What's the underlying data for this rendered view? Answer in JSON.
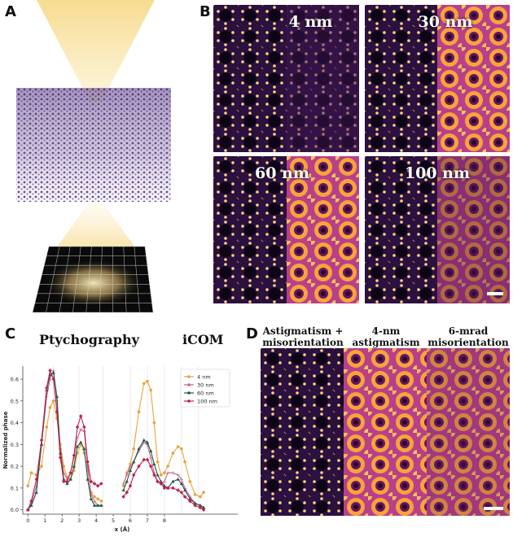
{
  "panels": {
    "a": "A",
    "b": "B",
    "c": "C",
    "d": "D"
  },
  "panel_b": {
    "tiles": [
      "4 nm",
      "30 nm",
      "60 nm",
      "100 nm"
    ]
  },
  "panel_c": {
    "title_left": "Ptychography",
    "title_right": "iCOM"
  },
  "panel_d": {
    "titles": [
      "Astigmatism +\nmisorientation",
      "4-nm\nastigmatism",
      "6-mrad\nmisorientation"
    ]
  },
  "colors": {
    "4 nm": "#e8a33d",
    "30 nm": "#c8648c",
    "60 nm": "#1e5a46",
    "100 nm": "#c21e4b"
  },
  "chart_data": {
    "type": "line",
    "xlabel": "x (Å)",
    "ylabel": "Normalized phase",
    "xlim": [
      -0.3,
      12.3
    ],
    "ylim": [
      -0.02,
      0.66
    ],
    "xticks": [
      0,
      1,
      2,
      3,
      4,
      5,
      6,
      7,
      8
    ],
    "yticks": [
      0.0,
      0.1,
      0.2,
      0.3,
      0.4,
      0.5,
      0.6
    ],
    "legend": "top-right",
    "series": [
      {
        "name": "4 nm",
        "ptycho": [
          [
            0,
            0.11
          ],
          [
            0.2,
            0.17
          ],
          [
            0.5,
            0.16
          ],
          [
            0.8,
            0.2
          ],
          [
            1.1,
            0.38
          ],
          [
            1.3,
            0.47
          ],
          [
            1.5,
            0.5
          ],
          [
            1.7,
            0.42
          ],
          [
            1.9,
            0.3
          ],
          [
            2.1,
            0.2
          ],
          [
            2.3,
            0.15
          ],
          [
            2.5,
            0.14
          ],
          [
            2.7,
            0.18
          ],
          [
            2.9,
            0.26
          ],
          [
            3.1,
            0.3
          ],
          [
            3.3,
            0.26
          ],
          [
            3.5,
            0.18
          ],
          [
            3.7,
            0.08
          ],
          [
            3.9,
            0.06
          ],
          [
            4.1,
            0.05
          ],
          [
            4.3,
            0.04
          ]
        ],
        "icom": [
          [
            5.6,
            0.11
          ],
          [
            5.8,
            0.17
          ],
          [
            6.0,
            0.21
          ],
          [
            6.2,
            0.28
          ],
          [
            6.5,
            0.45
          ],
          [
            6.8,
            0.58
          ],
          [
            7.0,
            0.59
          ],
          [
            7.2,
            0.55
          ],
          [
            7.4,
            0.4
          ],
          [
            7.6,
            0.22
          ],
          [
            7.8,
            0.16
          ],
          [
            8.0,
            0.17
          ],
          [
            8.2,
            0.2
          ],
          [
            8.5,
            0.26
          ],
          [
            8.8,
            0.29
          ],
          [
            9.0,
            0.28
          ],
          [
            9.2,
            0.22
          ],
          [
            9.5,
            0.13
          ],
          [
            9.8,
            0.07
          ],
          [
            10.1,
            0.06
          ],
          [
            10.3,
            0.08
          ]
        ]
      },
      {
        "name": "30 nm",
        "ptycho": [
          [
            0,
            0.0
          ],
          [
            0.2,
            0.03
          ],
          [
            0.5,
            0.11
          ],
          [
            0.8,
            0.3
          ],
          [
            1.1,
            0.52
          ],
          [
            1.3,
            0.6
          ],
          [
            1.5,
            0.64
          ],
          [
            1.7,
            0.5
          ],
          [
            1.9,
            0.28
          ],
          [
            2.1,
            0.17
          ],
          [
            2.3,
            0.14
          ],
          [
            2.5,
            0.17
          ],
          [
            2.7,
            0.24
          ],
          [
            2.9,
            0.33
          ],
          [
            3.1,
            0.37
          ],
          [
            3.3,
            0.36
          ],
          [
            3.5,
            0.2
          ],
          [
            3.7,
            0.07
          ],
          [
            3.9,
            0.04
          ],
          [
            4.1,
            0.02
          ],
          [
            4.3,
            0.02
          ]
        ],
        "icom": [
          [
            5.6,
            0.12
          ],
          [
            5.8,
            0.16
          ],
          [
            6.0,
            0.2
          ],
          [
            6.2,
            0.22
          ],
          [
            6.5,
            0.27
          ],
          [
            6.8,
            0.31
          ],
          [
            7.0,
            0.3
          ],
          [
            7.2,
            0.24
          ],
          [
            7.4,
            0.17
          ],
          [
            7.6,
            0.13
          ],
          [
            7.8,
            0.12
          ],
          [
            8.0,
            0.13
          ],
          [
            8.2,
            0.17
          ],
          [
            8.5,
            0.17
          ],
          [
            8.8,
            0.16
          ],
          [
            9.0,
            0.14
          ],
          [
            9.2,
            0.1
          ],
          [
            9.5,
            0.06
          ],
          [
            9.8,
            0.03
          ],
          [
            10.1,
            0.02
          ],
          [
            10.3,
            0.01
          ]
        ]
      },
      {
        "name": "60 nm",
        "ptycho": [
          [
            0,
            0.0
          ],
          [
            0.2,
            0.02
          ],
          [
            0.5,
            0.08
          ],
          [
            0.8,
            0.3
          ],
          [
            1.1,
            0.55
          ],
          [
            1.3,
            0.62
          ],
          [
            1.5,
            0.63
          ],
          [
            1.7,
            0.52
          ],
          [
            1.9,
            0.26
          ],
          [
            2.1,
            0.14
          ],
          [
            2.3,
            0.12
          ],
          [
            2.5,
            0.14
          ],
          [
            2.7,
            0.2
          ],
          [
            2.9,
            0.29
          ],
          [
            3.1,
            0.31
          ],
          [
            3.3,
            0.28
          ],
          [
            3.5,
            0.14
          ],
          [
            3.7,
            0.05
          ],
          [
            3.9,
            0.02
          ],
          [
            4.1,
            0.02
          ],
          [
            4.3,
            0.02
          ]
        ],
        "icom": [
          [
            5.6,
            0.09
          ],
          [
            5.8,
            0.13
          ],
          [
            6.0,
            0.18
          ],
          [
            6.2,
            0.22
          ],
          [
            6.5,
            0.28
          ],
          [
            6.8,
            0.32
          ],
          [
            7.0,
            0.31
          ],
          [
            7.2,
            0.27
          ],
          [
            7.4,
            0.21
          ],
          [
            7.6,
            0.16
          ],
          [
            7.8,
            0.13
          ],
          [
            8.0,
            0.11
          ],
          [
            8.2,
            0.1
          ],
          [
            8.5,
            0.13
          ],
          [
            8.8,
            0.14
          ],
          [
            9.0,
            0.12
          ],
          [
            9.2,
            0.09
          ],
          [
            9.5,
            0.05
          ],
          [
            9.8,
            0.03
          ],
          [
            10.1,
            0.02
          ],
          [
            10.3,
            0.01
          ]
        ]
      },
      {
        "name": "100 nm",
        "ptycho": [
          [
            0,
            0.0
          ],
          [
            0.2,
            0.04
          ],
          [
            0.5,
            0.14
          ],
          [
            0.8,
            0.32
          ],
          [
            1.1,
            0.56
          ],
          [
            1.3,
            0.64
          ],
          [
            1.5,
            0.6
          ],
          [
            1.7,
            0.45
          ],
          [
            1.9,
            0.24
          ],
          [
            2.1,
            0.13
          ],
          [
            2.3,
            0.13
          ],
          [
            2.5,
            0.17
          ],
          [
            2.7,
            0.25
          ],
          [
            2.9,
            0.38
          ],
          [
            3.1,
            0.43
          ],
          [
            3.3,
            0.38
          ],
          [
            3.5,
            0.22
          ],
          [
            3.7,
            0.13
          ],
          [
            3.9,
            0.12
          ],
          [
            4.1,
            0.11
          ],
          [
            4.3,
            0.12
          ]
        ],
        "icom": [
          [
            5.6,
            0.06
          ],
          [
            5.8,
            0.08
          ],
          [
            6.0,
            0.11
          ],
          [
            6.2,
            0.16
          ],
          [
            6.5,
            0.2
          ],
          [
            6.8,
            0.23
          ],
          [
            7.0,
            0.23
          ],
          [
            7.2,
            0.2
          ],
          [
            7.4,
            0.16
          ],
          [
            7.6,
            0.13
          ],
          [
            7.8,
            0.12
          ],
          [
            8.0,
            0.1
          ],
          [
            8.2,
            0.1
          ],
          [
            8.5,
            0.1
          ],
          [
            8.8,
            0.09
          ],
          [
            9.0,
            0.08
          ],
          [
            9.2,
            0.06
          ],
          [
            9.5,
            0.04
          ],
          [
            9.8,
            0.02
          ],
          [
            10.1,
            0.01
          ],
          [
            10.3,
            0.0
          ]
        ]
      }
    ]
  }
}
